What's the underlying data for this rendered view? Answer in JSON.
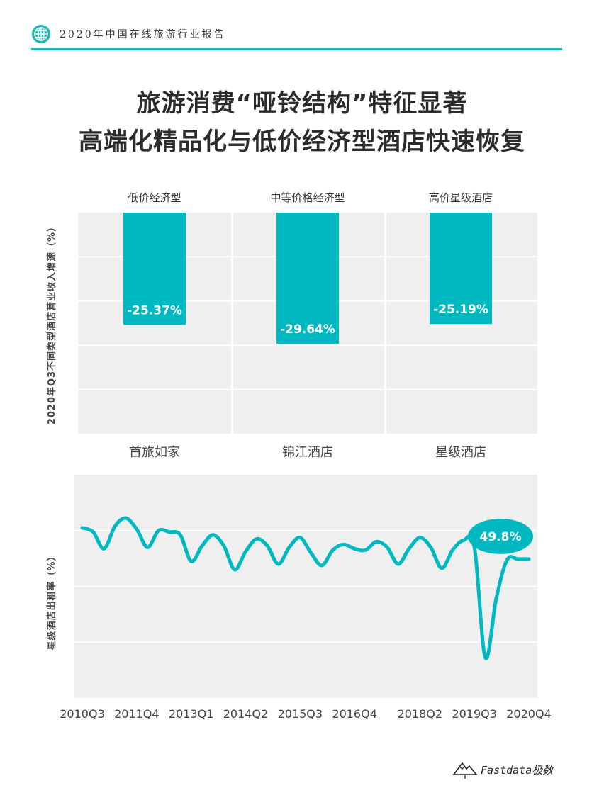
{
  "header": {
    "report_title": "2020年中国在线旅游行业报告",
    "accent_color": "#1ab5b5"
  },
  "headline": {
    "line1": "旅游消费“哑铃结构”特征显著",
    "line2": "高端化精品化与低价经济型酒店快速恢复"
  },
  "footer": {
    "brand": "Fastdata极数"
  },
  "chart_data": [
    {
      "type": "bar",
      "ylabel": "2020年Q3不同类型酒店营业收入增速（%）",
      "group_labels": [
        "低价经济型",
        "中等价格经济型",
        "高价星级酒店"
      ],
      "categories": [
        "首旅如家",
        "锦江酒店",
        "星级酒店"
      ],
      "values": [
        -25.37,
        -29.64,
        -25.19
      ],
      "value_labels": [
        "-25.37%",
        "-29.64%",
        "-25.19%"
      ],
      "ylim": [
        -50,
        0
      ],
      "bar_color": "#00b9c0",
      "grid": true
    },
    {
      "type": "line",
      "ylabel": "星级酒店出租率（%）",
      "x_tick_labels": [
        "2010Q3",
        "2011Q4",
        "2013Q1",
        "2014Q2",
        "2015Q3",
        "2016Q4",
        "2018Q2",
        "2019Q3",
        "2020Q4"
      ],
      "x": [
        "2010Q3",
        "2010Q4",
        "2011Q1",
        "2011Q2",
        "2011Q3",
        "2011Q4",
        "2012Q1",
        "2012Q2",
        "2012Q3",
        "2012Q4",
        "2013Q1",
        "2013Q2",
        "2013Q3",
        "2013Q4",
        "2014Q1",
        "2014Q2",
        "2014Q3",
        "2014Q4",
        "2015Q1",
        "2015Q2",
        "2015Q3",
        "2015Q4",
        "2016Q1",
        "2016Q2",
        "2016Q3",
        "2016Q4",
        "2017Q1",
        "2017Q2",
        "2017Q3",
        "2017Q4",
        "2018Q1",
        "2018Q2",
        "2018Q3",
        "2018Q4",
        "2019Q1",
        "2019Q2",
        "2019Q3",
        "2019Q4",
        "2020Q1",
        "2020Q2",
        "2020Q3",
        "2020Q4"
      ],
      "values": [
        61,
        59.5,
        53.5,
        61.5,
        64.5,
        60.5,
        54,
        60,
        59.5,
        58.5,
        49,
        54.5,
        58.5,
        54.5,
        46,
        52.5,
        57,
        54.5,
        48,
        54,
        57.5,
        52,
        47.5,
        53,
        55,
        53.5,
        53,
        56,
        54,
        48,
        53.5,
        57.5,
        54,
        46.5,
        53,
        56.5,
        54,
        14.5,
        35.5,
        49.5,
        49.8,
        49.8
      ],
      "annotation": "49.8%",
      "ylim": [
        0,
        80
      ],
      "line_color": "#00b9c0",
      "grid": true
    }
  ]
}
